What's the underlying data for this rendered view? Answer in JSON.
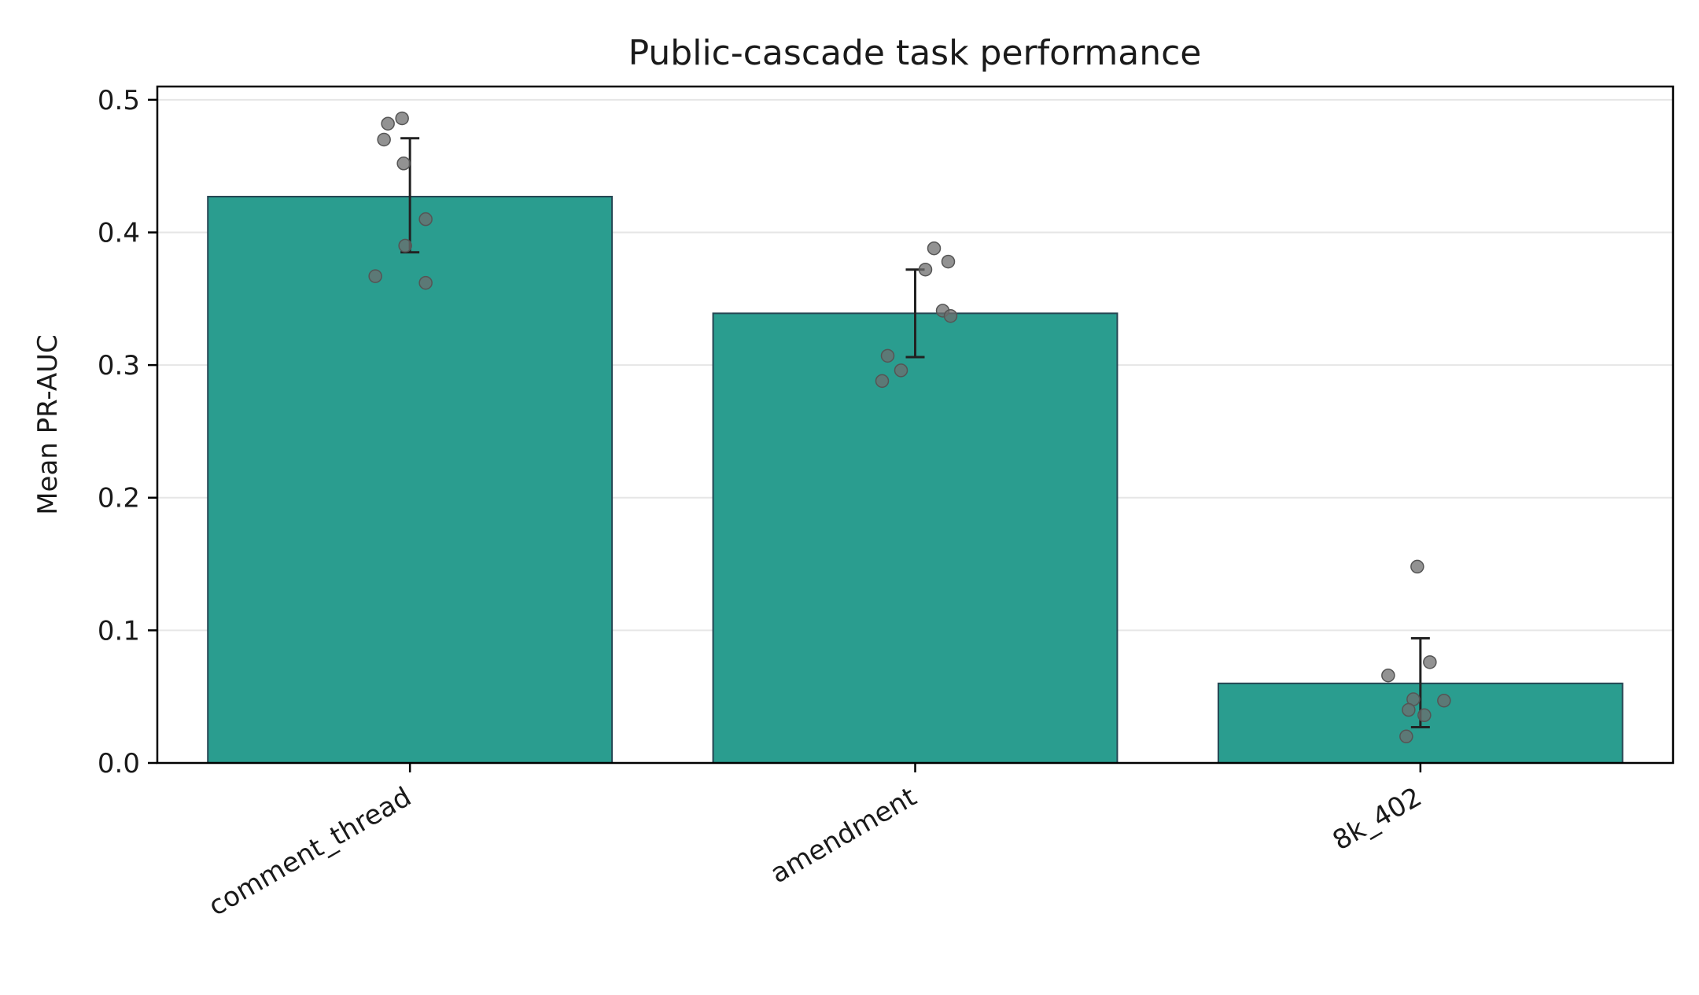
{
  "chart_data": {
    "type": "bar",
    "title": "Public-cascade task performance",
    "xlabel": "",
    "ylabel": "Mean PR-AUC",
    "ylim": [
      0,
      0.51
    ],
    "yticks": [
      0.0,
      0.1,
      0.2,
      0.3,
      0.4,
      0.5
    ],
    "ytick_labels": [
      "0.0",
      "0.1",
      "0.2",
      "0.3",
      "0.4",
      "0.5"
    ],
    "grid": "horizontal",
    "categories": [
      "comment_thread",
      "amendment",
      "8k_402"
    ],
    "values": [
      0.427,
      0.339,
      0.06
    ],
    "error_low": [
      0.385,
      0.306,
      0.027
    ],
    "error_high": [
      0.471,
      0.372,
      0.094
    ],
    "points": [
      [
        0.486,
        0.482,
        0.47,
        0.452,
        0.41,
        0.39,
        0.367,
        0.362
      ],
      [
        0.388,
        0.378,
        0.372,
        0.341,
        0.337,
        0.307,
        0.296,
        0.288
      ],
      [
        0.148,
        0.076,
        0.066,
        0.048,
        0.047,
        0.04,
        0.036,
        0.02
      ]
    ],
    "colors": {
      "bar": "#2a9d8f",
      "bar_edge": "#264653",
      "point": "#6e6e6e",
      "errorbar": "#222222",
      "grid": "#e6e6e6"
    }
  }
}
